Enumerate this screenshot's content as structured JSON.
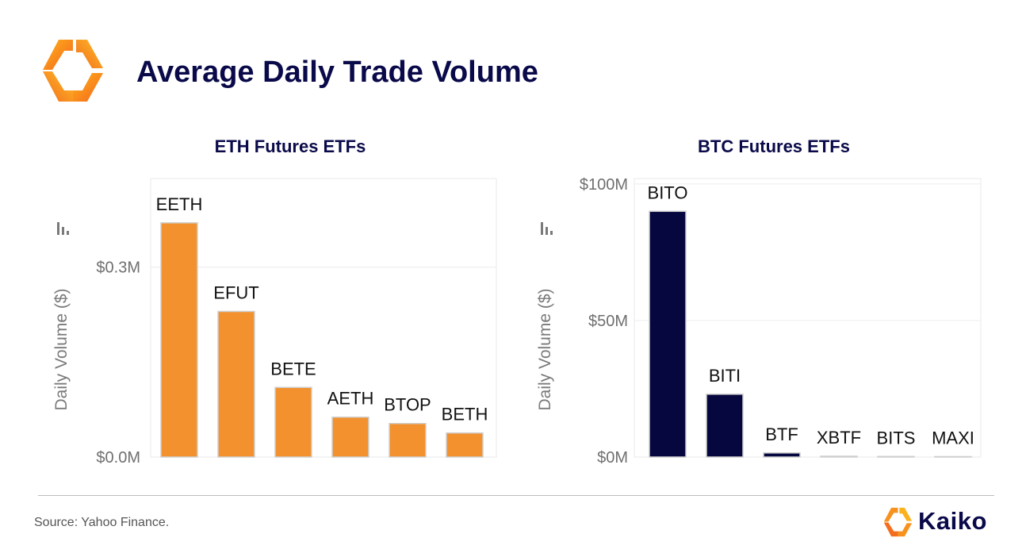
{
  "header": {
    "title": "Average Daily Trade Volume"
  },
  "footer": {
    "source": "Source: Yahoo Finance.",
    "brand": "Kaiko"
  },
  "colors": {
    "eth": "#f2912e",
    "btc": "#07073f",
    "title": "#0a0a4a",
    "axis_text": "#6f6f6f"
  },
  "chart_data": [
    {
      "id": "eth",
      "type": "bar",
      "title": "ETH Futures ETFs",
      "ylabel": "Daily Volume ($)",
      "xlabel": "",
      "categories": [
        "EETH",
        "EFUT",
        "BETE",
        "AETH",
        "BTOP",
        "BETH"
      ],
      "values": [
        0.37,
        0.23,
        0.11,
        0.063,
        0.053,
        0.038
      ],
      "unit": "M",
      "ylim": [
        0,
        0.44
      ],
      "yticks": [
        {
          "value": 0.3,
          "label": "$0.3M"
        },
        {
          "value": 0.0,
          "label": "$0.0M"
        }
      ],
      "grid": true,
      "color": "#f2912e"
    },
    {
      "id": "btc",
      "type": "bar",
      "title": "BTC Futures ETFs",
      "ylabel": "Daily Volume ($)",
      "xlabel": "",
      "categories": [
        "BITO",
        "BITI",
        "BTF",
        "XBTF",
        "BITS",
        "MAXI"
      ],
      "values": [
        90,
        23,
        1.5,
        0.3,
        0.2,
        0.1
      ],
      "unit": "M",
      "ylim": [
        0,
        102
      ],
      "yticks": [
        {
          "value": 100,
          "label": "$100M"
        },
        {
          "value": 50,
          "label": "$50M"
        },
        {
          "value": 0,
          "label": "$0M"
        }
      ],
      "grid": true,
      "color": "#07073f"
    }
  ]
}
